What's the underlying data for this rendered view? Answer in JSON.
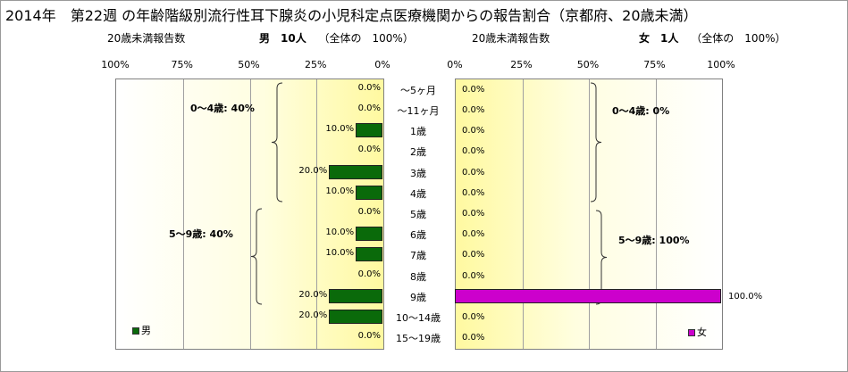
{
  "title": "2014年　第22週 の年齢階級別流行性耳下腺炎の小児科定点医療機関からの報告割合（京都府、20歳未満）",
  "left": {
    "subtitle_left": "20歳未満報告数",
    "subtitle_right": "男　10人",
    "subtitle_note": "（全体の　100%）",
    "ticks": [
      "100%",
      "75%",
      "50%",
      "25%",
      "0%"
    ],
    "groups": [
      {
        "label": "0～4歳: 40%"
      },
      {
        "label": "5～9歳: 40%"
      }
    ],
    "legend": "男"
  },
  "right": {
    "subtitle_left": "20歳未満報告数",
    "subtitle_right": "女　1人",
    "subtitle_note": "（全体の　100%）",
    "ticks": [
      "0%",
      "25%",
      "50%",
      "75%",
      "100%"
    ],
    "groups": [
      {
        "label": "0～4歳: 0%"
      },
      {
        "label": "5～9歳: 100%"
      }
    ],
    "legend": "女"
  },
  "colors": {
    "male": "#0a6a0a",
    "female": "#cc00cc"
  },
  "chart_data": {
    "type": "bar",
    "orientation": "horizontal",
    "categories": [
      "～5ヶ月",
      "～11ヶ月",
      "1歳",
      "2歳",
      "3歳",
      "4歳",
      "5歳",
      "6歳",
      "7歳",
      "8歳",
      "9歳",
      "10～14歳",
      "15～19歳"
    ],
    "series": [
      {
        "name": "男",
        "values": [
          0,
          0,
          10,
          0,
          20,
          10,
          0,
          10,
          10,
          0,
          20,
          20,
          0
        ],
        "labels": [
          "0.0%",
          "0.0%",
          "10.0%",
          "0.0%",
          "20.0%",
          "10.0%",
          "0.0%",
          "10.0%",
          "10.0%",
          "0.0%",
          "20.0%",
          "20.0%",
          "0.0%"
        ]
      },
      {
        "name": "女",
        "values": [
          0,
          0,
          0,
          0,
          0,
          0,
          0,
          0,
          0,
          0,
          100,
          0,
          0
        ],
        "labels": [
          "0.0%",
          "0.0%",
          "0.0%",
          "0.0%",
          "0.0%",
          "0.0%",
          "0.0%",
          "0.0%",
          "0.0%",
          "0.0%",
          "100.0%",
          "0.0%",
          "0.0%"
        ]
      }
    ],
    "xlim": [
      0,
      100
    ],
    "grid": true
  }
}
